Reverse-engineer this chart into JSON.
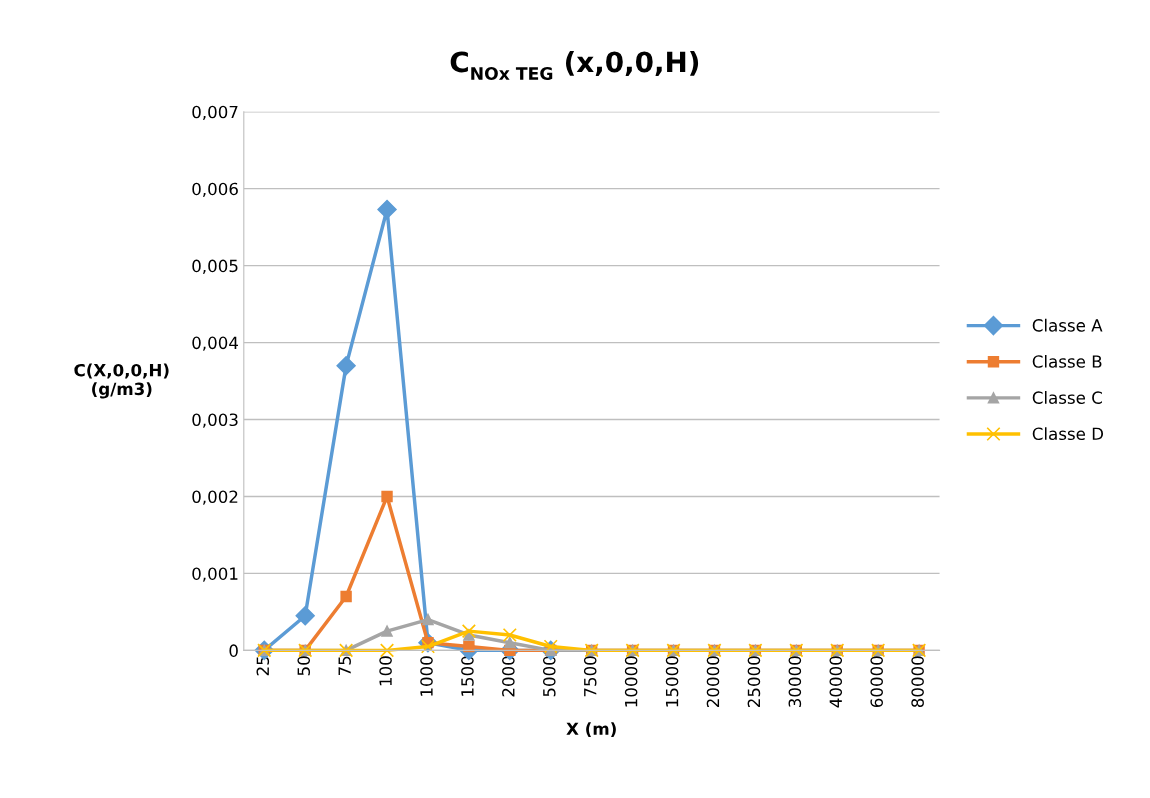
{
  "chart_data": {
    "type": "line",
    "title": "C$_{NOx TEG}$ (x,0,0,H)",
    "xlabel": "X (m)",
    "ylabel": "C(X,0,0,H)\n(g/m3)",
    "categories": [
      "25",
      "50",
      "75",
      "100",
      "1000",
      "1500",
      "2000",
      "5000",
      "7500",
      "10000",
      "15000",
      "20000",
      "25000",
      "30000",
      "40000",
      "60000",
      "80000"
    ],
    "series": [
      {
        "name": "Classe A",
        "color": "#5b9bd5",
        "marker": "diamond",
        "values": [
          0,
          0.00045,
          0.0037,
          0.00573,
          0.0001,
          0,
          0,
          0,
          null,
          null,
          null,
          null,
          null,
          null,
          null,
          null,
          null
        ]
      },
      {
        "name": "Classe B",
        "color": "#ed7d31",
        "marker": "square",
        "values": [
          0,
          0,
          0.0007,
          0.002,
          0.0001,
          5e-05,
          0,
          0,
          0,
          0,
          0,
          0,
          0,
          0,
          0,
          0,
          0
        ]
      },
      {
        "name": "Classe C",
        "color": "#a5a5a5",
        "marker": "triangle",
        "values": [
          0,
          0,
          0,
          0.00025,
          0.0004,
          0.0002,
          0.0001,
          0,
          0,
          0,
          0,
          0,
          0,
          0,
          0,
          0,
          0
        ]
      },
      {
        "name": "Classe D",
        "color": "#ffc000",
        "marker": "cross",
        "values": [
          0,
          0,
          0,
          0,
          5e-05,
          0.00025,
          0.0002,
          5e-05,
          0,
          0,
          0,
          0,
          0,
          0,
          0,
          0,
          0
        ]
      }
    ],
    "ylim": [
      0,
      0.007
    ],
    "yticks": [
      0,
      {
        "value": 0.001,
        "label": "0,001"
      },
      {
        "value": 0.002,
        "label": "0,002"
      },
      {
        "value": 0.003,
        "label": "0,003"
      },
      {
        "value": 0.004,
        "label": "0,004"
      },
      {
        "value": 0.005,
        "label": "0,005"
      },
      {
        "value": 0.006,
        "label": "0,006"
      },
      {
        "value": 0.007,
        "label": "0,007"
      }
    ],
    "grid": "y",
    "legend": "right",
    "line_style": "solid"
  }
}
